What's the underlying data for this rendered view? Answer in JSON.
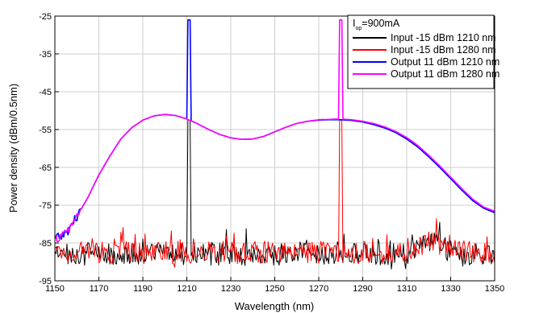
{
  "chart_data": {
    "type": "line",
    "title": "",
    "xlabel": "Wavelength (nm)",
    "ylabel": "Power density (dBm/0.5nm)",
    "xlim": [
      1150,
      1350
    ],
    "ylim": [
      -95,
      -25
    ],
    "xticks": [
      1150,
      1170,
      1190,
      1210,
      1230,
      1250,
      1270,
      1290,
      1310,
      1330,
      1350
    ],
    "yticks": [
      -95,
      -85,
      -75,
      -65,
      -55,
      -45,
      -35,
      -25
    ],
    "grid": true,
    "legend_placement": "top-right",
    "legend_header": {
      "main": "I",
      "subscript": "op",
      "rest": "=900mA"
    },
    "series": [
      {
        "name": "Input -15 dBm 1210 nm",
        "color": "#000000",
        "kind": "noise",
        "noise_floor": -88,
        "noise_bump": {
          "x": 1322,
          "width": 7,
          "height": 3
        },
        "peaks": [
          {
            "x": 1211,
            "y": -52.5,
            "width": 0.6
          }
        ]
      },
      {
        "name": "Input -15 dBm 1280 nm",
        "color": "#ff0000",
        "kind": "noise",
        "noise_floor": -87.5,
        "noise_bump": {
          "x": 1322,
          "width": 10,
          "height": 3
        },
        "peaks": [
          {
            "x": 1280,
            "y": -52.5,
            "width": 0.6
          }
        ]
      },
      {
        "name": "Output 11 dBm 1210 nm",
        "color": "#0000ff",
        "kind": "curve",
        "points": [
          [
            1150,
            -84
          ],
          [
            1155,
            -82.5
          ],
          [
            1160,
            -78
          ],
          [
            1165,
            -73
          ],
          [
            1170,
            -67
          ],
          [
            1175,
            -62
          ],
          [
            1180,
            -57.5
          ],
          [
            1185,
            -54.5
          ],
          [
            1190,
            -52.5
          ],
          [
            1195,
            -51.4
          ],
          [
            1200,
            -51
          ],
          [
            1205,
            -51.3
          ],
          [
            1210,
            -52.2
          ],
          [
            1215,
            -53.5
          ],
          [
            1220,
            -55
          ],
          [
            1225,
            -56.3
          ],
          [
            1230,
            -57.2
          ],
          [
            1235,
            -57.6
          ],
          [
            1240,
            -57.5
          ],
          [
            1245,
            -56.8
          ],
          [
            1250,
            -55.6
          ],
          [
            1255,
            -54.4
          ],
          [
            1260,
            -53.4
          ],
          [
            1265,
            -52.8
          ],
          [
            1270,
            -52.5
          ],
          [
            1275,
            -52.4
          ],
          [
            1280,
            -52.4
          ],
          [
            1285,
            -52.6
          ],
          [
            1290,
            -53
          ],
          [
            1295,
            -53.7
          ],
          [
            1300,
            -54.6
          ],
          [
            1305,
            -55.8
          ],
          [
            1310,
            -57.5
          ],
          [
            1315,
            -59.6
          ],
          [
            1320,
            -62.2
          ],
          [
            1325,
            -65
          ],
          [
            1330,
            -68
          ],
          [
            1335,
            -71
          ],
          [
            1340,
            -73.8
          ],
          [
            1345,
            -75.8
          ],
          [
            1350,
            -77
          ]
        ],
        "peaks": [
          {
            "x": 1211,
            "y": -26,
            "width": 0.6
          }
        ]
      },
      {
        "name": "Output 11 dBm 1280 nm",
        "color": "#ff00ff",
        "kind": "curve",
        "points": [
          [
            1150,
            -84
          ],
          [
            1155,
            -82.5
          ],
          [
            1160,
            -78
          ],
          [
            1165,
            -73
          ],
          [
            1170,
            -67
          ],
          [
            1175,
            -62
          ],
          [
            1180,
            -57.5
          ],
          [
            1185,
            -54.5
          ],
          [
            1190,
            -52.5
          ],
          [
            1195,
            -51.4
          ],
          [
            1200,
            -51
          ],
          [
            1205,
            -51.3
          ],
          [
            1210,
            -52.2
          ],
          [
            1215,
            -53.5
          ],
          [
            1220,
            -55
          ],
          [
            1225,
            -56.3
          ],
          [
            1230,
            -57.2
          ],
          [
            1235,
            -57.6
          ],
          [
            1240,
            -57.5
          ],
          [
            1245,
            -56.8
          ],
          [
            1250,
            -55.6
          ],
          [
            1255,
            -54.4
          ],
          [
            1260,
            -53.4
          ],
          [
            1265,
            -52.8
          ],
          [
            1270,
            -52.4
          ],
          [
            1275,
            -52.3
          ],
          [
            1280,
            -52.2
          ],
          [
            1285,
            -52.4
          ],
          [
            1290,
            -52.8
          ],
          [
            1295,
            -53.4
          ],
          [
            1300,
            -54.3
          ],
          [
            1305,
            -55.5
          ],
          [
            1310,
            -57.1
          ],
          [
            1315,
            -59.2
          ],
          [
            1320,
            -61.8
          ],
          [
            1325,
            -64.6
          ],
          [
            1330,
            -67.6
          ],
          [
            1335,
            -70.6
          ],
          [
            1340,
            -73.4
          ],
          [
            1345,
            -75.5
          ],
          [
            1350,
            -76.6
          ]
        ],
        "peaks": [
          {
            "x": 1280,
            "y": -26,
            "width": 0.6
          }
        ]
      }
    ]
  }
}
